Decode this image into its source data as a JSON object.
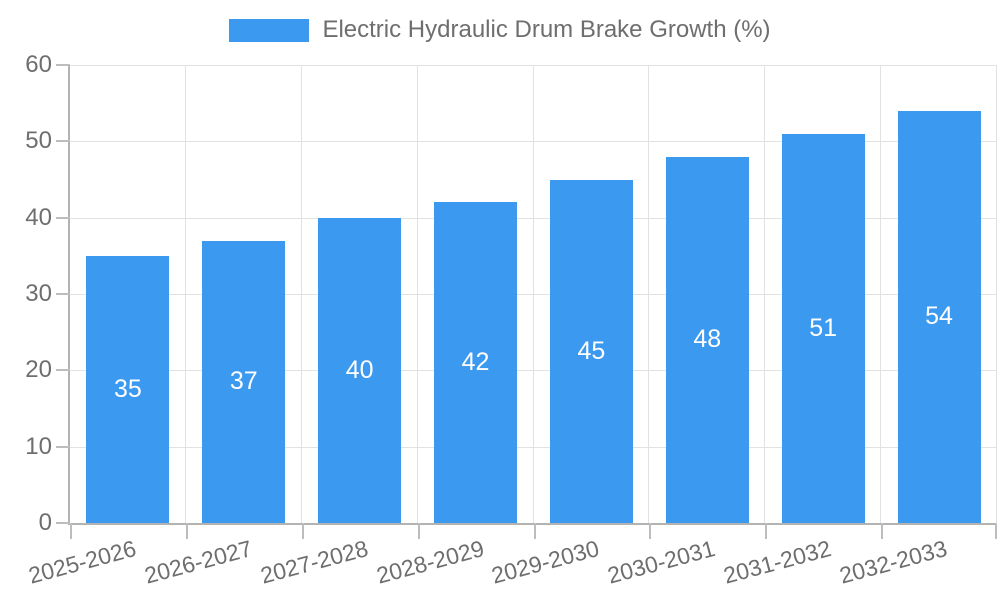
{
  "legend": {
    "label": "Electric Hydraulic Drum Brake Growth (%)"
  },
  "chart_data": {
    "type": "bar",
    "title": "Electric Hydraulic Drum Brake Growth (%)",
    "categories": [
      "2025-2026",
      "2026-2027",
      "2027-2028",
      "2028-2029",
      "2029-2030",
      "2030-2031",
      "2031-2032",
      "2032-2033"
    ],
    "values": [
      35,
      37,
      40,
      42,
      45,
      48,
      51,
      54
    ],
    "value_labels_shown": true,
    "xlabel": "",
    "ylabel": "",
    "ylim": [
      0,
      60
    ],
    "yticks": [
      0,
      10,
      20,
      30,
      40,
      50,
      60
    ],
    "grid": true,
    "legend_position": "top",
    "colors": {
      "bar": "#3b99ef",
      "value_label": "#ffffff",
      "grid": "#e2e2e2",
      "axis": "#b3b3b3",
      "tick": "#bdbdbd",
      "tick_label": "#6e6e6e",
      "legend_text": "#6e6e6e",
      "background": "#ffffff"
    }
  }
}
